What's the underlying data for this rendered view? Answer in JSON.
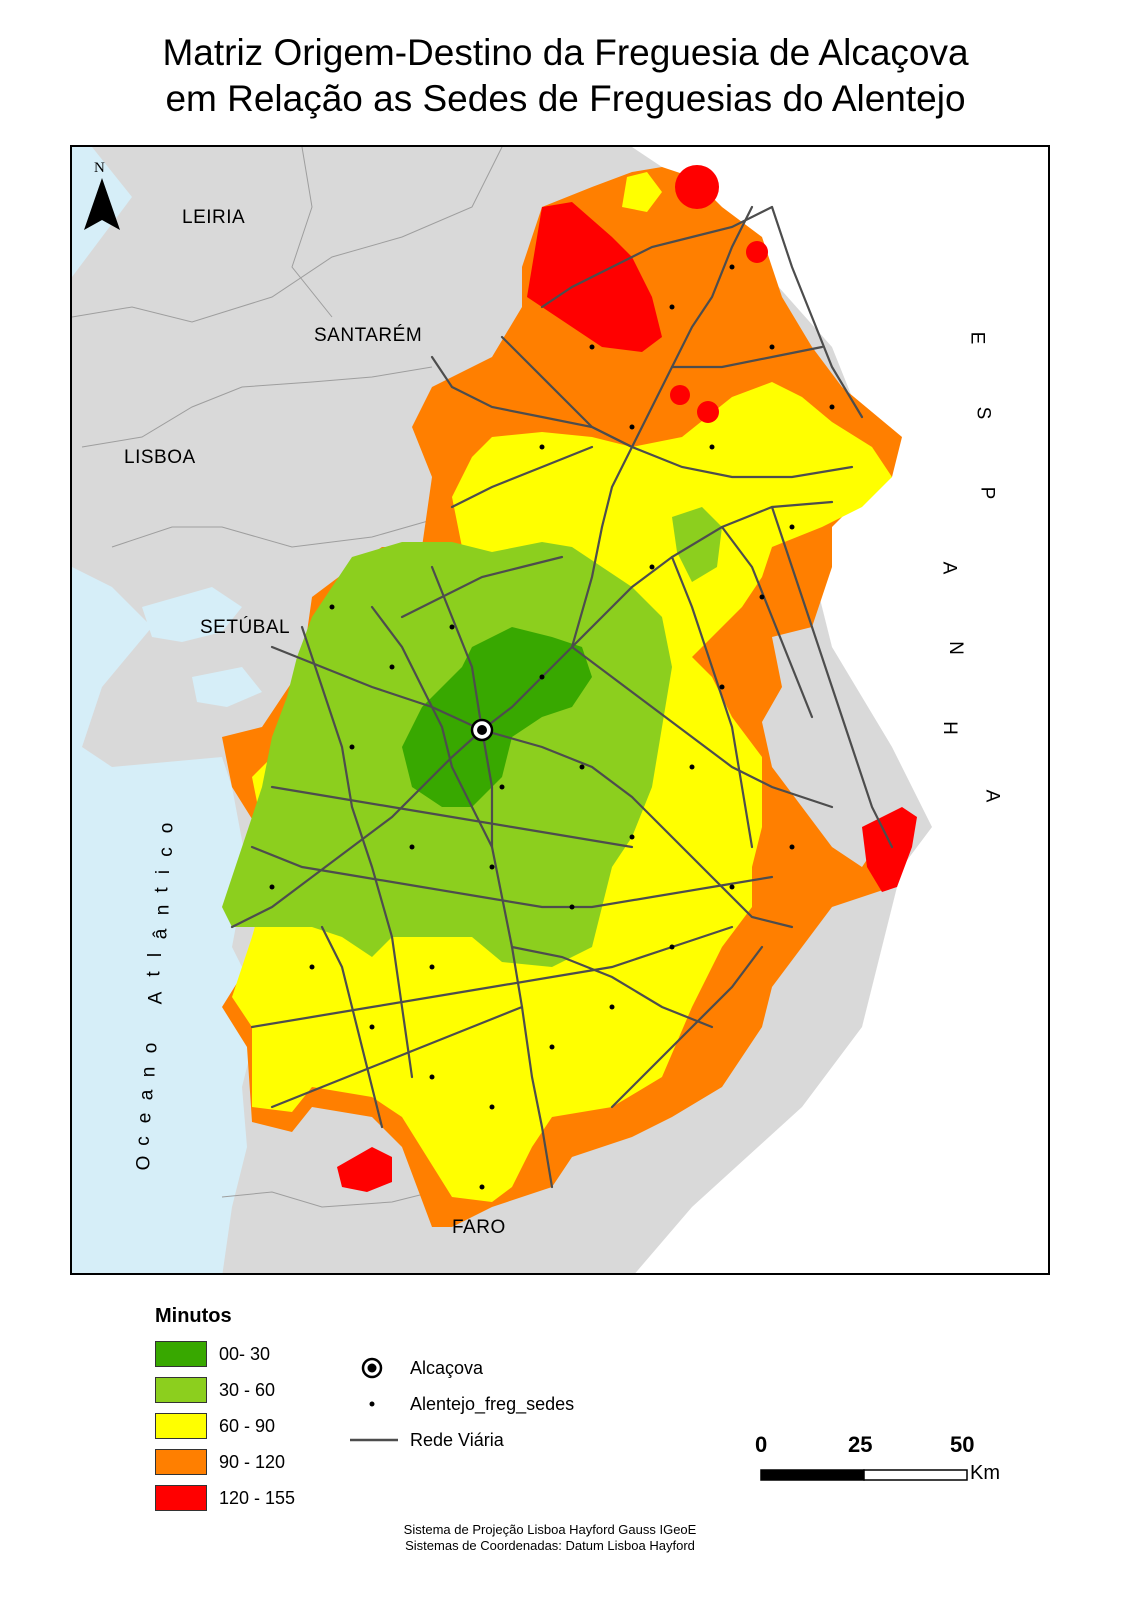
{
  "title": {
    "line1": "Matriz Origem-Destino da Freguesia de Alcaçova",
    "line2": "em Relação as Sedes de Freguesias do Alentejo"
  },
  "map": {
    "north_label": "N",
    "regions": {
      "leiria": "LEIRIA",
      "santarem": "SANTARÉM",
      "lisboa": "LISBOA",
      "setubal": "SETÚBAL",
      "faro": "FARO"
    },
    "espanha_letters": [
      "E",
      "S",
      "P",
      "A",
      "N",
      "H",
      "A"
    ],
    "ocean_letters": [
      "O",
      "c",
      "e",
      "a",
      "n",
      "o",
      " ",
      "A",
      "t",
      "l",
      "â",
      "n",
      "t",
      "i",
      "c",
      "o"
    ],
    "colors": {
      "land_other": "#d9d9d9",
      "sea": "#d6eef8",
      "class_0_30": "#38a800",
      "class_30_60": "#8ccf1e",
      "class_60_90": "#ffff00",
      "class_90_120": "#ff7f00",
      "class_120_155": "#ff0000",
      "roads": "#4d4d4d"
    }
  },
  "legend": {
    "title": "Minutos",
    "classes": [
      {
        "label": "00- 30",
        "color": "#38a800"
      },
      {
        "label": "30 - 60",
        "color": "#8ccf1e"
      },
      {
        "label": "60 - 90",
        "color": "#ffff00"
      },
      {
        "label": "90 - 120",
        "color": "#ff7f00"
      },
      {
        "label": "120 - 155",
        "color": "#ff0000"
      }
    ],
    "symbols": {
      "origin": "Alcaçova",
      "sedes": "Alentejo_freg_sedes",
      "roads": "Rede Viária"
    }
  },
  "scalebar": {
    "ticks": [
      "0",
      "25",
      "50"
    ],
    "unit": "Km"
  },
  "footer": {
    "line1": "Sistema de Projeção Lisboa Hayford Gauss IGeoE",
    "line2": "Sistemas de Coordenadas: Datum Lisboa Hayford"
  }
}
